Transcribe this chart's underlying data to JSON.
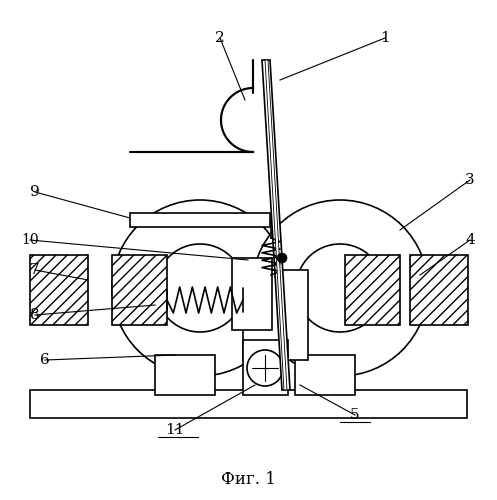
{
  "title": "Фиг. 1",
  "bg_color": "#ffffff",
  "lc": "#000000",
  "figsize": [
    4.97,
    5.0
  ],
  "dpi": 100
}
